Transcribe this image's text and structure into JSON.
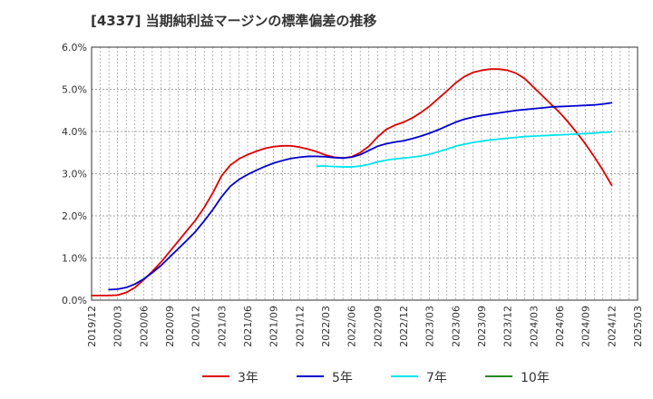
{
  "chart_data": {
    "type": "line",
    "title": "[4337]  当期純利益マージンの標準偏差の推移",
    "y_ticks": [
      "0.0%",
      "1.0%",
      "2.0%",
      "3.0%",
      "4.0%",
      "5.0%",
      "6.0%"
    ],
    "ylim": [
      0,
      6
    ],
    "xlim": [
      "2019/12",
      "2025/03"
    ],
    "x_ticks": [
      "2019/12",
      "2020/03",
      "2020/06",
      "2020/09",
      "2020/12",
      "2021/03",
      "2021/06",
      "2021/09",
      "2021/12",
      "2022/03",
      "2022/06",
      "2022/09",
      "2022/12",
      "2023/03",
      "2023/06",
      "2023/09",
      "2023/12",
      "2024/03",
      "2024/06",
      "2024/09",
      "2024/12",
      "2025/03"
    ],
    "grid": true,
    "legend_position": "bottom",
    "series": [
      {
        "name": "3年",
        "color": "#dd0000",
        "points": [
          [
            "2019/12",
            0.11
          ],
          [
            "2020/01",
            0.11
          ],
          [
            "2020/02",
            0.11
          ],
          [
            "2020/03",
            0.12
          ],
          [
            "2020/04",
            0.18
          ],
          [
            "2020/05",
            0.3
          ],
          [
            "2020/06",
            0.48
          ],
          [
            "2020/07",
            0.68
          ],
          [
            "2020/08",
            0.9
          ],
          [
            "2020/09",
            1.15
          ],
          [
            "2020/10",
            1.4
          ],
          [
            "2020/11",
            1.65
          ],
          [
            "2020/12",
            1.9
          ],
          [
            "2021/01",
            2.2
          ],
          [
            "2021/02",
            2.55
          ],
          [
            "2021/03",
            2.95
          ],
          [
            "2021/04",
            3.2
          ],
          [
            "2021/05",
            3.35
          ],
          [
            "2021/06",
            3.45
          ],
          [
            "2021/07",
            3.53
          ],
          [
            "2021/08",
            3.6
          ],
          [
            "2021/09",
            3.64
          ],
          [
            "2021/10",
            3.66
          ],
          [
            "2021/11",
            3.66
          ],
          [
            "2021/12",
            3.63
          ],
          [
            "2022/01",
            3.58
          ],
          [
            "2022/02",
            3.52
          ],
          [
            "2022/03",
            3.44
          ],
          [
            "2022/04",
            3.39
          ],
          [
            "2022/05",
            3.37
          ],
          [
            "2022/06",
            3.4
          ],
          [
            "2022/07",
            3.5
          ],
          [
            "2022/08",
            3.65
          ],
          [
            "2022/09",
            3.87
          ],
          [
            "2022/10",
            4.05
          ],
          [
            "2022/11",
            4.15
          ],
          [
            "2022/12",
            4.22
          ],
          [
            "2023/01",
            4.32
          ],
          [
            "2023/02",
            4.45
          ],
          [
            "2023/03",
            4.6
          ],
          [
            "2023/04",
            4.78
          ],
          [
            "2023/05",
            4.96
          ],
          [
            "2023/06",
            5.15
          ],
          [
            "2023/07",
            5.3
          ],
          [
            "2023/08",
            5.4
          ],
          [
            "2023/09",
            5.45
          ],
          [
            "2023/10",
            5.48
          ],
          [
            "2023/11",
            5.48
          ],
          [
            "2023/12",
            5.45
          ],
          [
            "2024/01",
            5.38
          ],
          [
            "2024/02",
            5.25
          ],
          [
            "2024/03",
            5.05
          ],
          [
            "2024/04",
            4.85
          ],
          [
            "2024/05",
            4.65
          ],
          [
            "2024/06",
            4.45
          ],
          [
            "2024/07",
            4.22
          ],
          [
            "2024/08",
            3.97
          ],
          [
            "2024/09",
            3.7
          ],
          [
            "2024/10",
            3.4
          ],
          [
            "2024/11",
            3.08
          ],
          [
            "2024/12",
            2.73
          ]
        ]
      },
      {
        "name": "5年",
        "color": "#0000cc",
        "points": [
          [
            "2020/02",
            0.25
          ],
          [
            "2020/03",
            0.26
          ],
          [
            "2020/04",
            0.3
          ],
          [
            "2020/05",
            0.38
          ],
          [
            "2020/06",
            0.5
          ],
          [
            "2020/07",
            0.65
          ],
          [
            "2020/08",
            0.82
          ],
          [
            "2020/09",
            1.02
          ],
          [
            "2020/10",
            1.22
          ],
          [
            "2020/11",
            1.42
          ],
          [
            "2020/12",
            1.63
          ],
          [
            "2021/01",
            1.88
          ],
          [
            "2021/02",
            2.15
          ],
          [
            "2021/03",
            2.45
          ],
          [
            "2021/04",
            2.7
          ],
          [
            "2021/05",
            2.86
          ],
          [
            "2021/06",
            2.98
          ],
          [
            "2021/07",
            3.08
          ],
          [
            "2021/08",
            3.17
          ],
          [
            "2021/09",
            3.25
          ],
          [
            "2021/10",
            3.31
          ],
          [
            "2021/11",
            3.36
          ],
          [
            "2021/12",
            3.39
          ],
          [
            "2022/01",
            3.41
          ],
          [
            "2022/02",
            3.41
          ],
          [
            "2022/03",
            3.4
          ],
          [
            "2022/04",
            3.38
          ],
          [
            "2022/05",
            3.37
          ],
          [
            "2022/06",
            3.39
          ],
          [
            "2022/07",
            3.45
          ],
          [
            "2022/08",
            3.55
          ],
          [
            "2022/09",
            3.65
          ],
          [
            "2022/10",
            3.71
          ],
          [
            "2022/11",
            3.75
          ],
          [
            "2022/12",
            3.78
          ],
          [
            "2023/01",
            3.83
          ],
          [
            "2023/02",
            3.89
          ],
          [
            "2023/03",
            3.96
          ],
          [
            "2023/04",
            4.04
          ],
          [
            "2023/05",
            4.13
          ],
          [
            "2023/06",
            4.22
          ],
          [
            "2023/07",
            4.29
          ],
          [
            "2023/08",
            4.34
          ],
          [
            "2023/09",
            4.38
          ],
          [
            "2023/10",
            4.41
          ],
          [
            "2023/11",
            4.44
          ],
          [
            "2023/12",
            4.47
          ],
          [
            "2024/01",
            4.5
          ],
          [
            "2024/02",
            4.52
          ],
          [
            "2024/03",
            4.54
          ],
          [
            "2024/04",
            4.56
          ],
          [
            "2024/05",
            4.58
          ],
          [
            "2024/06",
            4.59
          ],
          [
            "2024/07",
            4.6
          ],
          [
            "2024/08",
            4.61
          ],
          [
            "2024/09",
            4.62
          ],
          [
            "2024/10",
            4.63
          ],
          [
            "2024/11",
            4.65
          ],
          [
            "2024/12",
            4.68
          ]
        ]
      },
      {
        "name": "7年",
        "color": "#00e5ee",
        "points": [
          [
            "2022/02",
            3.18
          ],
          [
            "2022/03",
            3.18
          ],
          [
            "2022/04",
            3.17
          ],
          [
            "2022/05",
            3.16
          ],
          [
            "2022/06",
            3.16
          ],
          [
            "2022/07",
            3.18
          ],
          [
            "2022/08",
            3.22
          ],
          [
            "2022/09",
            3.28
          ],
          [
            "2022/10",
            3.32
          ],
          [
            "2022/11",
            3.35
          ],
          [
            "2022/12",
            3.37
          ],
          [
            "2023/01",
            3.39
          ],
          [
            "2023/02",
            3.42
          ],
          [
            "2023/03",
            3.46
          ],
          [
            "2023/04",
            3.52
          ],
          [
            "2023/05",
            3.58
          ],
          [
            "2023/06",
            3.65
          ],
          [
            "2023/07",
            3.7
          ],
          [
            "2023/08",
            3.74
          ],
          [
            "2023/09",
            3.77
          ],
          [
            "2023/10",
            3.8
          ],
          [
            "2023/11",
            3.82
          ],
          [
            "2023/12",
            3.84
          ],
          [
            "2024/01",
            3.86
          ],
          [
            "2024/02",
            3.88
          ],
          [
            "2024/03",
            3.89
          ],
          [
            "2024/04",
            3.9
          ],
          [
            "2024/05",
            3.91
          ],
          [
            "2024/06",
            3.92
          ],
          [
            "2024/07",
            3.93
          ],
          [
            "2024/08",
            3.94
          ],
          [
            "2024/09",
            3.95
          ],
          [
            "2024/10",
            3.96
          ],
          [
            "2024/11",
            3.98
          ],
          [
            "2024/12",
            3.99
          ]
        ]
      },
      {
        "name": "10年",
        "color": "#228b22",
        "points": []
      }
    ]
  }
}
